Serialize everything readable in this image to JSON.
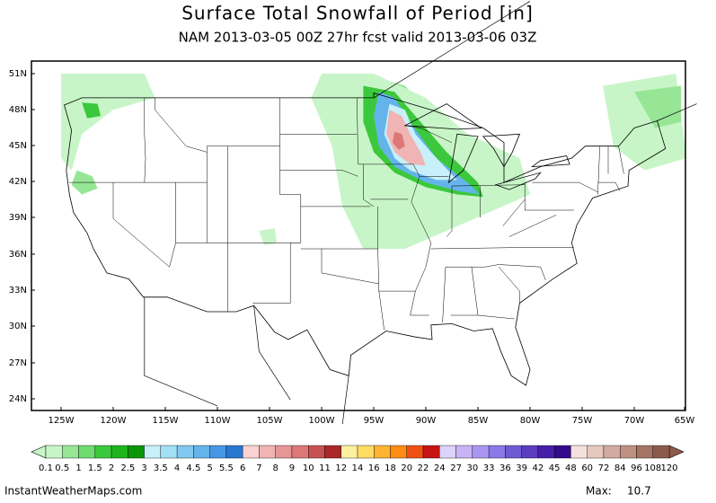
{
  "title": "Surface Total Snowfall of Period [in]",
  "subtitle": "NAM 2013-03-05 00Z 27hr fcst valid 2013-03-06 03Z",
  "lat_labels": [
    "51N",
    "48N",
    "45N",
    "42N",
    "39N",
    "36N",
    "33N",
    "30N",
    "27N",
    "24N"
  ],
  "lon_labels": [
    "125W",
    "120W",
    "115W",
    "110W",
    "105W",
    "100W",
    "95W",
    "90W",
    "85W",
    "80W",
    "75W",
    "70W",
    "65W"
  ],
  "colorbar": {
    "labels": [
      "0.1",
      "0.5",
      "1",
      "1.5",
      "2",
      "2.5",
      "3",
      "3.5",
      "4",
      "4.5",
      "5",
      "5.5",
      "6",
      "7",
      "8",
      "9",
      "10",
      "11",
      "12",
      "14",
      "16",
      "18",
      "20",
      "22",
      "24",
      "27",
      "30",
      "33",
      "36",
      "39",
      "42",
      "45",
      "48",
      "60",
      "72",
      "84",
      "96",
      "108",
      "120"
    ],
    "colors": [
      "#c8f5c8",
      "#96e696",
      "#6edc6e",
      "#3cc83c",
      "#1eb41e",
      "#0a960a",
      "#c8f0fa",
      "#a0e0f5",
      "#82c8f0",
      "#64b4eb",
      "#4696e6",
      "#2878d2",
      "#fad2d2",
      "#f0b4b4",
      "#e69696",
      "#dc7878",
      "#c85050",
      "#aa2828",
      "#fff0a0",
      "#ffdc64",
      "#ffb432",
      "#ff8c14",
      "#f05014",
      "#c81414",
      "#dcd2fa",
      "#c8b4f5",
      "#aa96f0",
      "#8c78e6",
      "#6e5ad2",
      "#5a3cbe",
      "#461eaa",
      "#320a8c",
      "#f5e1dc",
      "#e6c8be",
      "#d2aaa0",
      "#be9182",
      "#a57464",
      "#8c5a4b"
    ]
  },
  "footer": {
    "site": "InstantWeatherMaps.com",
    "max_label": "Max:",
    "max_value": 10.7
  }
}
